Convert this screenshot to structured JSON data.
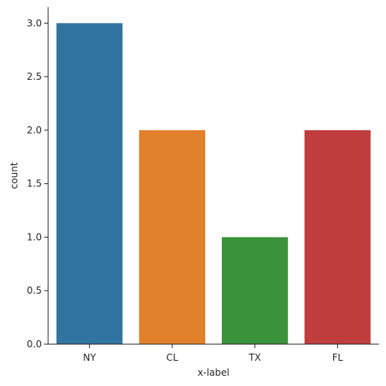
{
  "chart_data": {
    "type": "bar",
    "categories": [
      "NY",
      "CL",
      "TX",
      "FL"
    ],
    "values": [
      3,
      2,
      1,
      2
    ],
    "colors": [
      "#3274a1",
      "#e1812c",
      "#3a923a",
      "#c03d3e"
    ],
    "title": "",
    "xlabel": "x-label",
    "ylabel": "count",
    "ylim": [
      0,
      3.15
    ],
    "yticks": [
      {
        "value": 0.0,
        "label": "0.0"
      },
      {
        "value": 0.5,
        "label": "0.5"
      },
      {
        "value": 1.0,
        "label": "1.0"
      },
      {
        "value": 1.5,
        "label": "1.5"
      },
      {
        "value": 2.0,
        "label": "2.0"
      },
      {
        "value": 2.5,
        "label": "2.5"
      },
      {
        "value": 3.0,
        "label": "3.0"
      }
    ],
    "grid": false,
    "legend": "none"
  }
}
